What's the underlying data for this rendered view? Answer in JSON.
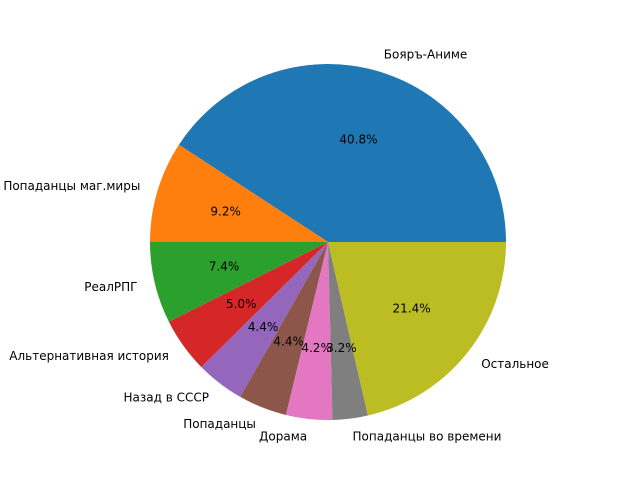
{
  "chart_data": {
    "type": "pie",
    "title": "",
    "start_angle_deg": 0,
    "direction": "counterclockwise",
    "slices": [
      {
        "label": "Бояръ-Аниме",
        "value": 40.8,
        "pct_label": "40.8%",
        "color": "#1f77b4"
      },
      {
        "label": "Попаданцы маг.миры",
        "value": 9.2,
        "pct_label": "9.2%",
        "color": "#ff7f0e"
      },
      {
        "label": "РеалРПГ",
        "value": 7.4,
        "pct_label": "7.4%",
        "color": "#2ca02c"
      },
      {
        "label": "Альтернативная история",
        "value": 5.0,
        "pct_label": "5.0%",
        "color": "#d62728"
      },
      {
        "label": "Назад в СССР",
        "value": 4.4,
        "pct_label": "4.4%",
        "color": "#9467bd"
      },
      {
        "label": "Попаданцы",
        "value": 4.4,
        "pct_label": "4.4%",
        "color": "#8c564b"
      },
      {
        "label": "Дорама",
        "value": 4.2,
        "pct_label": "4.2%",
        "color": "#e377c2"
      },
      {
        "label": "Попаданцы во времени",
        "value": 3.2,
        "pct_label": "3.2%",
        "color": "#7f7f7f"
      },
      {
        "label": "Остальное",
        "value": 21.4,
        "pct_label": "21.4%",
        "color": "#bcbd22"
      }
    ]
  }
}
